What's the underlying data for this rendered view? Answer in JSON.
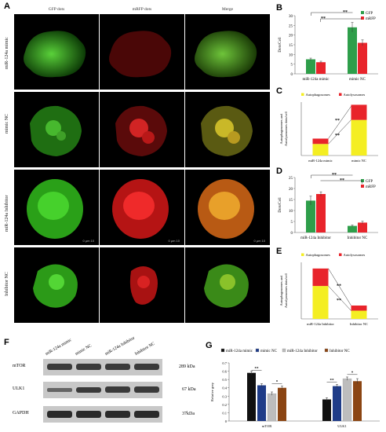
{
  "panel_letters": [
    "A",
    "B",
    "C",
    "D",
    "E",
    "F",
    "G"
  ],
  "microscopy": {
    "columns": [
      "GFP dots",
      "mRFP dots",
      "Merge"
    ],
    "rows": [
      "miR-124a mimic",
      "mimic NC",
      "miR-124a Inhibitor",
      "Inhibitor NC"
    ],
    "scale_bar": "0 μm 10"
  },
  "chart_data": [
    {
      "panel": "B",
      "type": "bar",
      "categories": [
        "miR-124a mimic",
        "mimic NC"
      ],
      "series": [
        {
          "name": "GFP",
          "values": [
            7.5,
            24
          ],
          "errors": [
            0.6,
            2.5
          ],
          "color": "#2e9e4a"
        },
        {
          "name": "mRFP",
          "values": [
            6,
            16
          ],
          "errors": [
            0.5,
            1.5
          ],
          "color": "#e8242b"
        }
      ],
      "ylabel": "Dots/Cell",
      "ylim": [
        0,
        30
      ],
      "yticks": [
        0,
        5,
        10,
        15,
        20,
        25,
        30
      ],
      "significance": [
        "**",
        "**"
      ]
    },
    {
      "panel": "C",
      "type": "bar",
      "stacked": true,
      "categories": [
        "miR-124a mimic",
        "mimic NC"
      ],
      "series": [
        {
          "name": "Autophagosomes",
          "values": [
            13,
            40
          ],
          "color": "#f4ee22"
        },
        {
          "name": "Autolysosomes",
          "values": [
            6,
            17
          ],
          "color": "#e8242b"
        }
      ],
      "ylabel": "Autophagosomes and Autolysosomes dots/cell",
      "ylim": [
        0,
        60
      ],
      "significance": [
        "**",
        "**"
      ]
    },
    {
      "panel": "D",
      "type": "bar",
      "categories": [
        "miR-124a Inhibitor",
        "Inhibitor NC"
      ],
      "series": [
        {
          "name": "GFP",
          "values": [
            14.5,
            3
          ],
          "errors": [
            2.0,
            0.4
          ],
          "color": "#2e9e4a"
        },
        {
          "name": "mRFP",
          "values": [
            17.5,
            4.5
          ],
          "errors": [
            1.0,
            0.6
          ],
          "color": "#e8242b"
        }
      ],
      "ylabel": "Dots/Cell",
      "ylim": [
        0,
        25
      ],
      "yticks": [
        0,
        5,
        10,
        15,
        20,
        25
      ],
      "significance": [
        "**",
        "**"
      ]
    },
    {
      "panel": "E",
      "type": "bar",
      "stacked": true,
      "categories": [
        "miR-124a Inhibitor",
        "Inhibitor NC"
      ],
      "series": [
        {
          "name": "Autophagosomes",
          "values": [
            32,
            8
          ],
          "color": "#f4ee22"
        },
        {
          "name": "Autolysosomes",
          "values": [
            17,
            5
          ],
          "color": "#e8242b"
        }
      ],
      "ylabel": "Autophagosomes and Autolysosomes dots/cell",
      "ylim": [
        0,
        55
      ],
      "significance": [
        "**",
        "**"
      ]
    },
    {
      "panel": "G",
      "type": "bar",
      "categories": [
        "mTOR",
        "ULK1"
      ],
      "series": [
        {
          "name": "miR-124a mimic",
          "values": [
            0.58,
            0.26
          ],
          "errors": [
            0.02,
            0.02
          ],
          "color": "#111111"
        },
        {
          "name": "mimic NC",
          "values": [
            0.43,
            0.42
          ],
          "errors": [
            0.02,
            0.02
          ],
          "color": "#1f3c88"
        },
        {
          "name": "miR-124a Inhibitor",
          "values": [
            0.33,
            0.51
          ],
          "errors": [
            0.02,
            0.02
          ],
          "color": "#bdbdbd"
        },
        {
          "name": "Inhibitor NC",
          "values": [
            0.4,
            0.48
          ],
          "errors": [
            0.02,
            0.03
          ],
          "color": "#8b4513"
        }
      ],
      "ylabel": "Relative grey",
      "ylim": [
        0,
        0.7
      ],
      "yticks": [
        0,
        0.1,
        0.2,
        0.3,
        0.4,
        0.5,
        0.6,
        0.7
      ],
      "significance": [
        "**",
        "*",
        "**",
        "*"
      ]
    }
  ],
  "western_blot": {
    "lanes": [
      "miR-124a mimic",
      "mimic NC",
      "miR-124a Inhibitor",
      "Inhibitor NC"
    ],
    "proteins": [
      {
        "name": "mTOR",
        "size": "289 kDa"
      },
      {
        "name": "ULK1",
        "size": "67 kDa"
      },
      {
        "name": "GAPDH",
        "size": "37kDa"
      }
    ]
  }
}
